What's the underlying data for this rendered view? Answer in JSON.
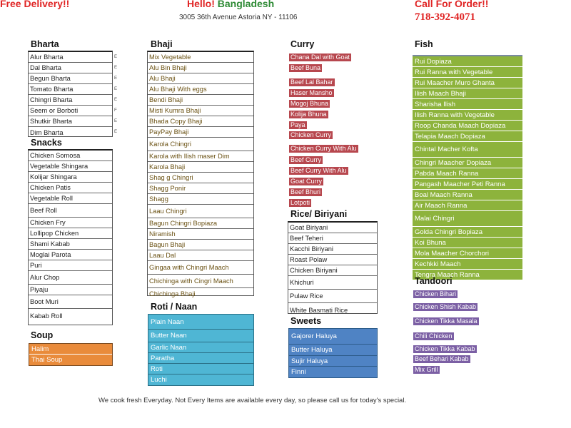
{
  "header": {
    "free_delivery": "Free Delivery!!",
    "hello": "Hello!",
    "restaurant": "Bangladesh",
    "address": "3005 36th Avenue Astoria NY - 11106",
    "call_label": "Call For Order!!",
    "phone": "718-392-4071"
  },
  "bharta": {
    "title": "Bharta",
    "items": [
      "Alur Bharta",
      "Dal Bharta",
      "Begun Bharta",
      "Tomato Bharta",
      "Chingri Bharta",
      "Seem or Borboti",
      "Shutkir Bharta",
      "Dim Bharta"
    ],
    "side_marks": [
      "E",
      "E",
      "E",
      "E",
      "E",
      "F",
      "E",
      "E"
    ]
  },
  "snacks": {
    "title": "Snacks",
    "items": [
      "Chicken Somosa",
      "Vegetable Shingara",
      "Kolijar Shingara",
      "Chicken Patis",
      "Vegetable Roll",
      "Beef Roll",
      "Chicken Fry",
      "Lollipop Chicken",
      "Shami Kabab",
      "Moglai Parota",
      "Puri",
      "Alur Chop",
      "Piyaju",
      "Boot Muri",
      "Kabab Roll"
    ]
  },
  "soup": {
    "title": "Soup",
    "items": [
      "Halim",
      "Thai Soup"
    ]
  },
  "bhaji": {
    "title": "Bhaji",
    "items": [
      "Mix Vegetable",
      "Alu Bin Bhaji",
      "Alu Bhaji",
      "Alu Bhaji With eggs",
      "Bendi Bhaji",
      "Misti Kumra Bhaji",
      "Bhada Copy Bhaji",
      "PayPay Bhaji",
      "Karola Chingri",
      "Karola with Ilish maser Dim",
      "Karola Bhaji",
      "Shag g Chingri",
      "Shagg Ponir",
      "Shagg",
      "Laau Chingri",
      "Bagun Chingri Bopiaza",
      "Niramish",
      "Bagun Bhaji",
      "Laau Dal",
      "Gingaa with Chingri Maach",
      "Chichinga with Cingri Maach",
      "Chichinga  Bhaji"
    ]
  },
  "roti": {
    "title": "Roti /  Naan",
    "items": [
      "Plain Naan",
      "Butter Naan",
      "Garlic Naan",
      "Paratha",
      "Roti",
      "Luchi"
    ]
  },
  "curry": {
    "title": "Curry",
    "items": [
      "Chana Dal with Goat",
      "Beef Buna",
      "Beef Lal Bahar",
      "Haser Mansho",
      "Mogoj Bhuna",
      "Kolija Bhuna",
      "Paya",
      "Chicken Curry",
      "Chicken Curry With Alu",
      "Beef Curry",
      "Beef Curry With Alu",
      "Goat Curry",
      "Beef Bhuri",
      "Lotpoti"
    ]
  },
  "rice": {
    "title": "Rice/  Biriyani",
    "items": [
      "Goat Biriyani",
      "Beef Teheri",
      "Kacchi Biriyani",
      "Roast Polaw",
      "Chicken  Biriyani",
      "Khichuri",
      "Pulaw Rice",
      "White Basmati Rice"
    ]
  },
  "sweets": {
    "title": "Sweets",
    "items": [
      "Gajorer Haluya",
      "Butter Haluya",
      "Sujir Haluya",
      "Finni"
    ]
  },
  "fish": {
    "title": "Fish",
    "items": [
      "Rui Dopiaza",
      "Rui Ranna with Vegetable",
      "Rui Maacher Muro Ghanta",
      "Ilish Maach Bhaji",
      "Sharisha Ilish",
      "Ilish Ranna with Vegetable",
      "Roop Chanda Maach Dopiaza",
      "Telapia Maach Dopiaza",
      "Chintal Macher Kofta",
      "Chingri Maacher Dopiaza",
      "Pabda Maach Ranna",
      "Pangash Maacher Peti Ranna",
      "Boal Maach Ranna",
      "Air Maach Ranna",
      "Malai Chingri",
      "Golda Chingri Bopiaza",
      "Koi Bhuna",
      "Mola Maacher Chorchori",
      "Kechkki Maach",
      "Tengra Maach Ranna"
    ]
  },
  "tandoori": {
    "title": "Tandoori",
    "items": [
      "Chicken Bihari",
      "Chicken Shish  Kabab",
      "Chicken Tikka Masala",
      "Chili Chicken",
      "Chicken Tikka Kabab",
      "Beef Behari Kabab",
      "Mix Grill"
    ]
  },
  "footer": "We cook fresh Everyday.  Not  Every Items are available every day, so please call us for  today's special.",
  "colors": {
    "red": "#e02424",
    "green": "#2d8a34",
    "curry": "#b7474e",
    "fish": "#8db33c",
    "tandoori": "#7b5fa4",
    "roti": "#4fb6d4",
    "sweets": "#4f83c4",
    "soup": "#e98b3b"
  }
}
